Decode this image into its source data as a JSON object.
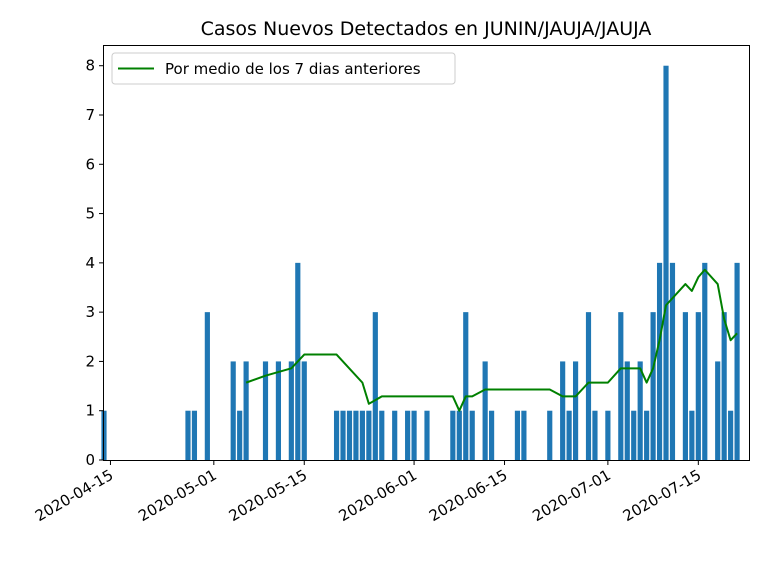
{
  "chart_data": {
    "type": "bar",
    "title": "Casos Nuevos Detectados en JUNIN/JAUJA/JAUJA",
    "xlabel": "",
    "ylabel": "",
    "x_axis_type": "date",
    "xlim": [
      "2020-04-14",
      "2020-07-23"
    ],
    "ylim": [
      0,
      8.4
    ],
    "yticks": [
      0,
      1,
      2,
      3,
      4,
      5,
      6,
      7,
      8
    ],
    "xticks": [
      "2020-04-15",
      "2020-05-01",
      "2020-05-15",
      "2020-06-01",
      "2020-06-15",
      "2020-07-01",
      "2020-07-15"
    ],
    "grid": false,
    "legend": {
      "position": "upper-left",
      "entries": [
        "Por medio de los 7 dias anteriores"
      ]
    },
    "colors": {
      "bar": "#1f77b4",
      "line": "#008000"
    },
    "bars": {
      "dates": [
        "2020-04-14",
        "2020-04-27",
        "2020-04-28",
        "2020-04-30",
        "2020-05-04",
        "2020-05-05",
        "2020-05-06",
        "2020-05-09",
        "2020-05-11",
        "2020-05-13",
        "2020-05-14",
        "2020-05-15",
        "2020-05-20",
        "2020-05-21",
        "2020-05-22",
        "2020-05-23",
        "2020-05-24",
        "2020-05-25",
        "2020-05-26",
        "2020-05-27",
        "2020-05-29",
        "2020-05-31",
        "2020-06-01",
        "2020-06-03",
        "2020-06-07",
        "2020-06-08",
        "2020-06-09",
        "2020-06-10",
        "2020-06-12",
        "2020-06-13",
        "2020-06-17",
        "2020-06-18",
        "2020-06-22",
        "2020-06-24",
        "2020-06-25",
        "2020-06-26",
        "2020-06-28",
        "2020-06-29",
        "2020-07-01",
        "2020-07-03",
        "2020-07-04",
        "2020-07-05",
        "2020-07-06",
        "2020-07-07",
        "2020-07-08",
        "2020-07-09",
        "2020-07-10",
        "2020-07-11",
        "2020-07-13",
        "2020-07-14",
        "2020-07-15",
        "2020-07-16",
        "2020-07-18",
        "2020-07-19",
        "2020-07-20",
        "2020-07-21"
      ],
      "values": [
        1,
        1,
        1,
        3,
        2,
        1,
        2,
        2,
        2,
        2,
        4,
        2,
        1,
        1,
        1,
        1,
        1,
        1,
        3,
        1,
        1,
        1,
        1,
        1,
        1,
        1,
        3,
        1,
        2,
        1,
        1,
        1,
        1,
        2,
        1,
        2,
        3,
        1,
        1,
        3,
        2,
        1,
        2,
        1,
        3,
        4,
        8,
        4,
        3,
        1,
        3,
        4,
        2,
        3,
        1,
        4
      ]
    },
    "series": [
      {
        "name": "Por medio de los 7 dias anteriores",
        "type": "line",
        "dates": [
          "2020-05-06",
          "2020-05-09",
          "2020-05-13",
          "2020-05-14",
          "2020-05-15",
          "2020-05-20",
          "2020-05-24",
          "2020-05-25",
          "2020-05-27",
          "2020-06-07",
          "2020-06-08",
          "2020-06-09",
          "2020-06-10",
          "2020-06-12",
          "2020-06-22",
          "2020-06-24",
          "2020-06-26",
          "2020-06-28",
          "2020-07-01",
          "2020-07-03",
          "2020-07-06",
          "2020-07-07",
          "2020-07-08",
          "2020-07-09",
          "2020-07-10",
          "2020-07-13",
          "2020-07-14",
          "2020-07-15",
          "2020-07-16",
          "2020-07-18",
          "2020-07-19",
          "2020-07-20",
          "2020-07-21"
        ],
        "values": [
          1.57,
          1.71,
          1.86,
          2.0,
          2.14,
          2.14,
          1.57,
          1.14,
          1.29,
          1.29,
          1.0,
          1.29,
          1.29,
          1.43,
          1.43,
          1.29,
          1.29,
          1.57,
          1.57,
          1.86,
          1.86,
          1.57,
          1.86,
          2.43,
          3.14,
          3.57,
          3.43,
          3.71,
          3.86,
          3.57,
          2.86,
          2.43,
          2.57
        ]
      }
    ]
  }
}
